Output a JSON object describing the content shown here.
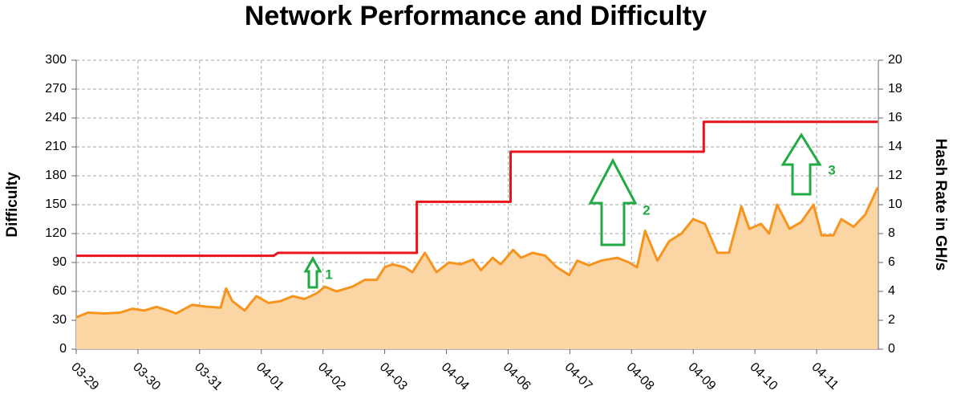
{
  "chart_data": {
    "type": "line",
    "title": "Network Performance and Difficulty",
    "ylabel": "Difficulty",
    "y2label": "Hash Rate in GH/s",
    "xlim": [
      0,
      13
    ],
    "xticks": [
      {
        "value": 0,
        "label": "03-29"
      },
      {
        "value": 1,
        "label": "03-30"
      },
      {
        "value": 2,
        "label": "03-31"
      },
      {
        "value": 3,
        "label": "04-01"
      },
      {
        "value": 4,
        "label": "04-02"
      },
      {
        "value": 5,
        "label": "04-03"
      },
      {
        "value": 6,
        "label": "04-04"
      },
      {
        "value": 7,
        "label": "04-06"
      },
      {
        "value": 8,
        "label": "04-07"
      },
      {
        "value": 9,
        "label": "04-08"
      },
      {
        "value": 10,
        "label": "04-09"
      },
      {
        "value": 11,
        "label": "04-10"
      },
      {
        "value": 12,
        "label": "04-11"
      }
    ],
    "ylim": [
      0,
      300
    ],
    "yticks": [
      0,
      30,
      60,
      90,
      120,
      150,
      180,
      210,
      240,
      270,
      300
    ],
    "y2lim": [
      0,
      20
    ],
    "y2ticks": [
      0,
      2,
      4,
      6,
      8,
      10,
      12,
      14,
      16,
      18,
      20
    ],
    "grid": true,
    "series": [
      {
        "color": "#f7941d",
        "fill": "#fcd5a5",
        "axis": "y2",
        "x": [
          0,
          0.19,
          0.45,
          0.71,
          0.91,
          1.1,
          1.3,
          1.49,
          1.62,
          1.88,
          2.14,
          2.34,
          2.43,
          2.53,
          2.73,
          2.92,
          3.12,
          3.31,
          3.51,
          3.7,
          3.9,
          4.03,
          4.22,
          4.48,
          4.68,
          4.87,
          5.0,
          5.13,
          5.32,
          5.45,
          5.65,
          5.84,
          6.04,
          6.23,
          6.43,
          6.56,
          6.75,
          6.88,
          7.08,
          7.21,
          7.4,
          7.6,
          7.79,
          7.99,
          8.12,
          8.31,
          8.51,
          8.77,
          8.96,
          9.09,
          9.22,
          9.42,
          9.61,
          9.81,
          10.0,
          10.19,
          10.39,
          10.58,
          10.78,
          10.91,
          11.1,
          11.23,
          11.36,
          11.56,
          11.75,
          11.95,
          12.08,
          12.27,
          12.4,
          12.6,
          12.79,
          12.99
        ],
        "values": [
          2.2,
          2.53,
          2.47,
          2.53,
          2.8,
          2.67,
          2.93,
          2.67,
          2.47,
          3.07,
          2.93,
          2.87,
          4.2,
          3.33,
          2.67,
          3.67,
          3.2,
          3.33,
          3.67,
          3.47,
          3.87,
          4.33,
          4.0,
          4.33,
          4.8,
          4.8,
          5.67,
          5.87,
          5.67,
          5.33,
          6.67,
          5.33,
          6.0,
          5.87,
          6.2,
          5.47,
          6.33,
          5.87,
          6.87,
          6.33,
          6.67,
          6.47,
          5.67,
          5.13,
          6.13,
          5.8,
          6.13,
          6.33,
          6.0,
          5.67,
          8.2,
          6.13,
          7.47,
          8.0,
          9.0,
          8.67,
          6.67,
          6.67,
          9.87,
          8.33,
          8.67,
          8.0,
          10.0,
          8.33,
          8.8,
          10.0,
          7.87,
          7.87,
          9.0,
          8.47,
          9.33,
          11.2
        ]
      },
      {
        "color": "#e8141b",
        "axis": "y",
        "x": [
          0,
          3.2,
          3.27,
          5.52,
          5.52,
          7.04,
          7.04,
          10.17,
          10.17,
          12.99
        ],
        "values": [
          97,
          97,
          100,
          100,
          153,
          153,
          205,
          205,
          236,
          236
        ]
      }
    ],
    "annotations": [
      "1",
      "2",
      "3"
    ]
  }
}
